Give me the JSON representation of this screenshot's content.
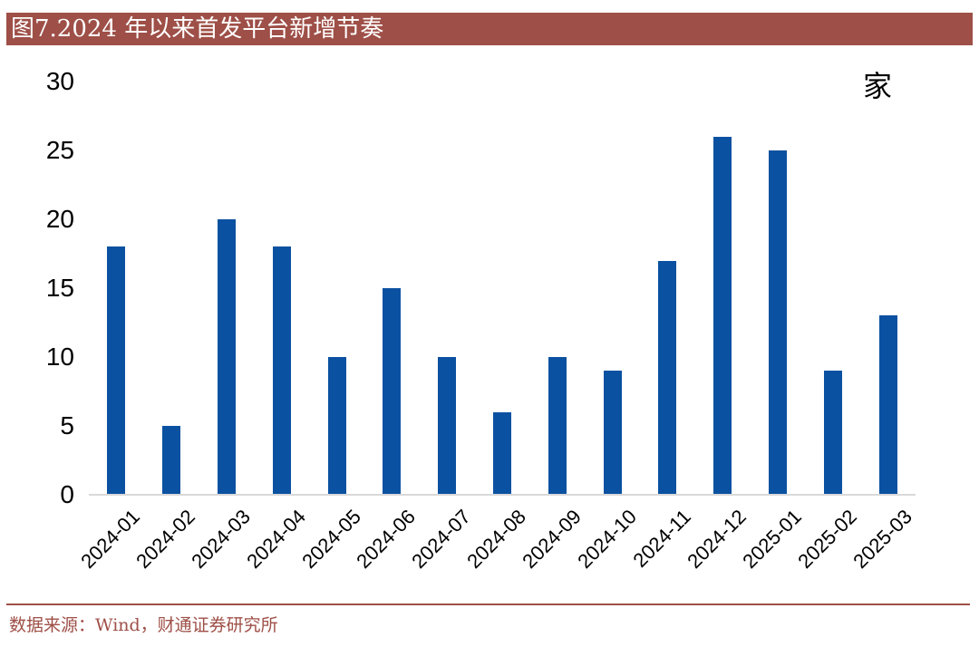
{
  "header": {
    "title": "图7.2024 年以来首发平台新增节奏"
  },
  "chart_data": {
    "type": "bar",
    "title": "图7.2024 年以来首发平台新增节奏",
    "unit_label": "家",
    "categories": [
      "2024-01",
      "2024-02",
      "2024-03",
      "2024-04",
      "2024-05",
      "2024-06",
      "2024-07",
      "2024-08",
      "2024-09",
      "2024-10",
      "2024-11",
      "2024-12",
      "2025-01",
      "2025-02",
      "2025-03"
    ],
    "values": [
      18,
      5,
      20,
      18,
      10,
      15,
      10,
      6,
      10,
      9,
      17,
      26,
      25,
      9,
      13
    ],
    "xlabel": "",
    "ylabel": "",
    "ylim": [
      0,
      30
    ],
    "yticks": [
      0,
      5,
      10,
      15,
      20,
      25,
      30
    ],
    "grid": false,
    "legend": "none",
    "bar_color": "#0b51a1"
  },
  "footer": {
    "source": "数据来源：Wind，财通证券研究所"
  },
  "colors": {
    "accent_red": "#9e4f47",
    "bar_blue": "#0b51a1",
    "axis_line_gray": "#d9d9d9",
    "title_text": "#ffffff",
    "axis_text": "#000000"
  }
}
